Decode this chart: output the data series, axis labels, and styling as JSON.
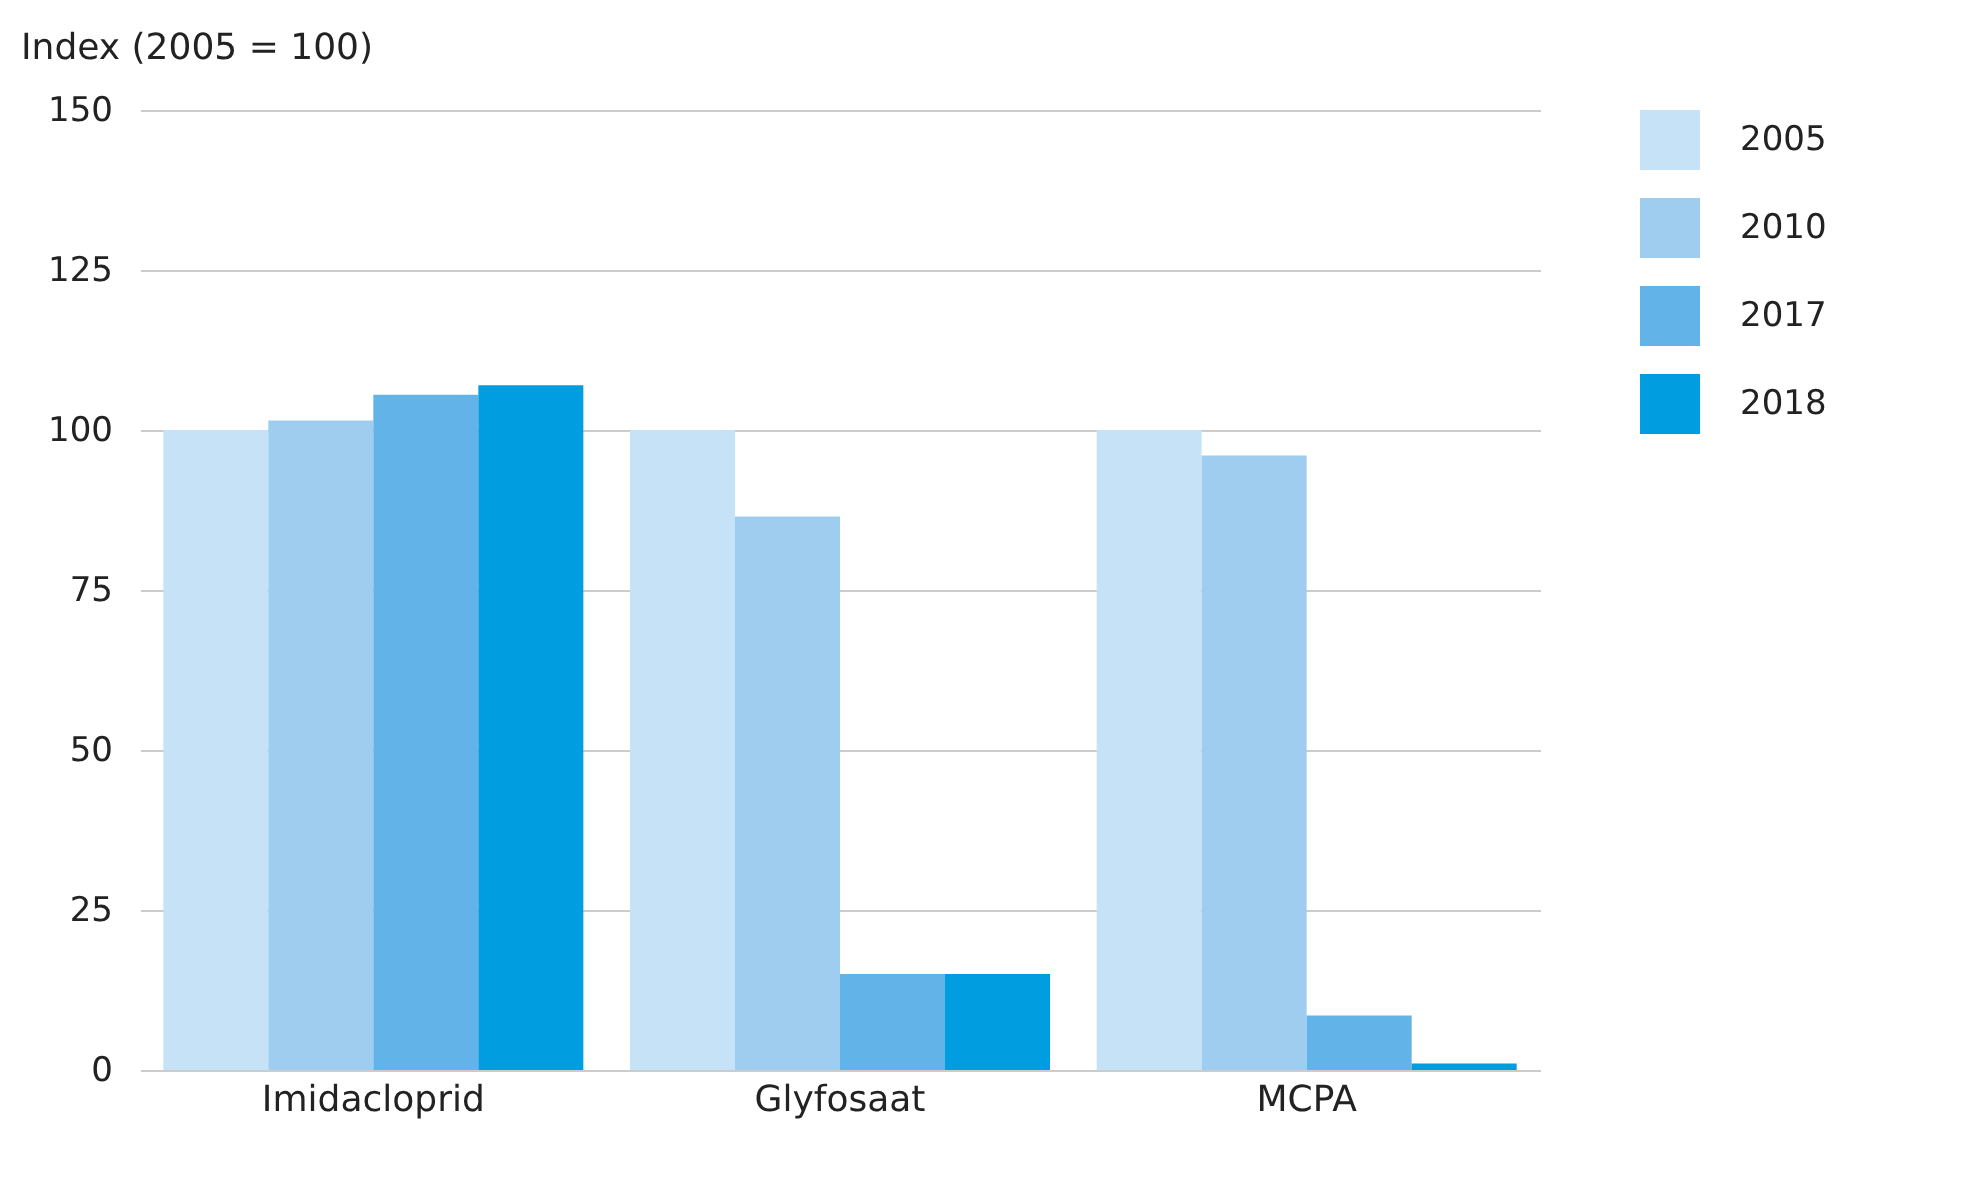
{
  "chart_data": {
    "type": "bar",
    "ylabel": "Index (2005 = 100)",
    "categories": [
      "Imidacloprid",
      "Glyfosaat",
      "MCPA"
    ],
    "series": [
      {
        "name": "2005",
        "color": "#c6e2f7",
        "values": [
          100,
          100,
          100
        ]
      },
      {
        "name": "2010",
        "color": "#9fcdf0",
        "values": [
          101.5,
          86.5,
          96
        ]
      },
      {
        "name": "2017",
        "color": "#62b4e8",
        "values": [
          105.5,
          15,
          8.5
        ]
      },
      {
        "name": "2018",
        "color": "#009ee0",
        "values": [
          107,
          15,
          1
        ]
      }
    ],
    "ylim": [
      0,
      150
    ],
    "yticks": [
      0,
      25,
      50,
      75,
      100,
      125,
      150
    ],
    "grid": "y",
    "legend": "top right"
  }
}
